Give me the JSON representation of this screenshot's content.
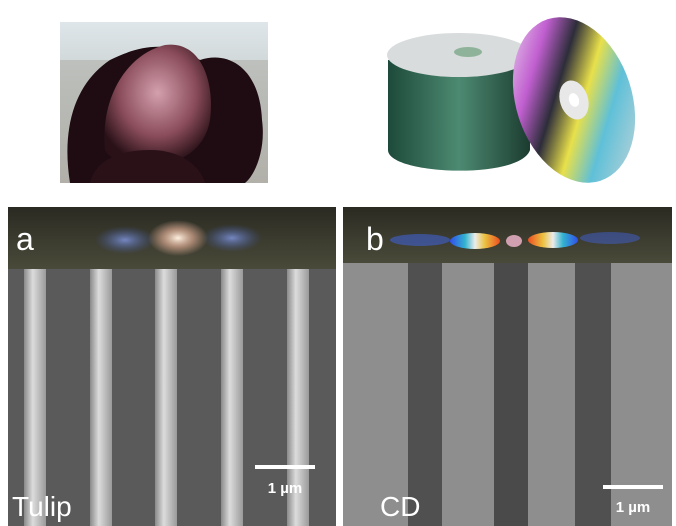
{
  "panels": [
    {
      "letter": "a",
      "label": "Tulip",
      "scale_bar": "1 µm"
    },
    {
      "letter": "b",
      "label": "CD",
      "scale_bar": "1 µm"
    }
  ]
}
